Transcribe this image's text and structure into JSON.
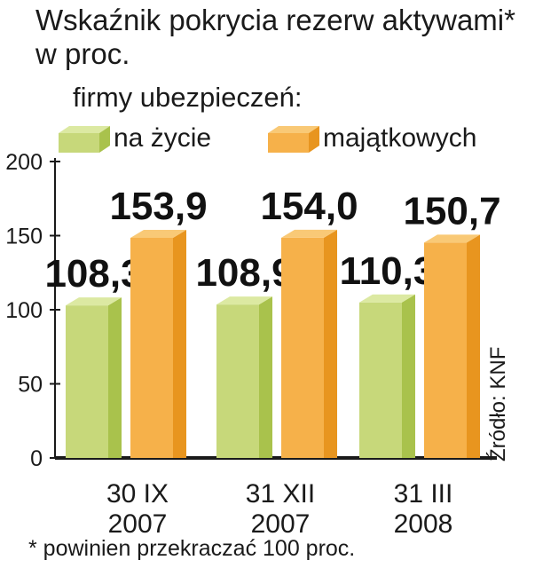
{
  "title_line1": "Wskaźnik pokrycia rezerw aktywami*",
  "title_line2": "w proc.",
  "legend_title": "firmy ubezpieczeń:",
  "footnote": "* powinien przekraczać 100 proc.",
  "source": "Źródło: KNF",
  "colors": {
    "zycie_front": "#c7d87a",
    "zycie_side": "#a9c24c",
    "zycie_top": "#dce9a2",
    "majatkowe_front": "#f6b14a",
    "majatkowe_side": "#e8951f",
    "majatkowe_top": "#f9c976"
  },
  "chart_data": {
    "type": "bar",
    "categories": [
      [
        "30 IX",
        "2007"
      ],
      [
        "31 XII",
        "2007"
      ],
      [
        "31 III",
        "2008"
      ]
    ],
    "series": [
      {
        "name": "na życie",
        "values": [
          108.3,
          108.9,
          110.3
        ],
        "labels": [
          "108,3",
          "108,9",
          "110,3"
        ]
      },
      {
        "name": "majątkowych",
        "values": [
          153.9,
          154.0,
          150.7
        ],
        "labels": [
          "153,9",
          "154,0",
          "150,7"
        ]
      }
    ],
    "yticks": [
      "0",
      "50",
      "100",
      "150",
      "200"
    ],
    "ylim": [
      0,
      200
    ],
    "title": "Wskaźnik pokrycia rezerw aktywami* w proc.",
    "legend_placement": "top"
  }
}
